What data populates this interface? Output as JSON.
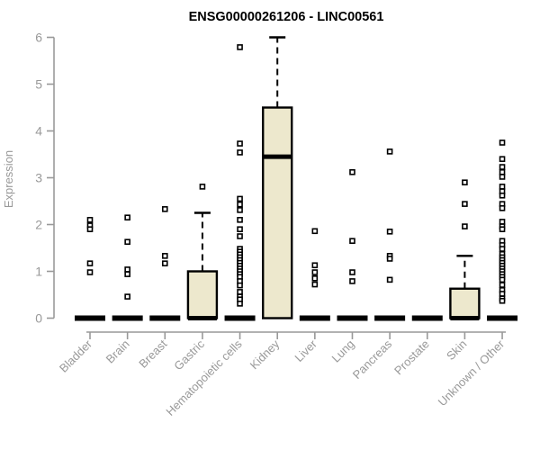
{
  "chart_data": {
    "type": "boxplot",
    "title": "ENSG00000261206 - LINC00561",
    "ylabel": "Expression",
    "xlabel": "",
    "ylim": [
      0,
      6
    ],
    "yticks": [
      0,
      1,
      2,
      3,
      4,
      5,
      6
    ],
    "legend": "none",
    "grid": false,
    "colors": {
      "box_fill": "#ede8cd",
      "box_stroke": "#000000",
      "axis": "#999999",
      "tick_label": "#999999",
      "title": "#000000"
    },
    "categories": [
      "Bladder",
      "Brain",
      "Breast",
      "Gastric",
      "Hematopoietic cells",
      "Kidney",
      "Liver",
      "Lung",
      "Pancreas",
      "Prostate",
      "Skin",
      "Unknown / Other"
    ],
    "boxes": [
      {
        "label": "Bladder",
        "q1": 0,
        "median": 0,
        "q3": 0,
        "whisker_low": 0,
        "whisker_high": 0,
        "outliers": [
          2.1,
          1.98,
          1.9,
          1.17,
          0.98
        ]
      },
      {
        "label": "Brain",
        "q1": 0,
        "median": 0,
        "q3": 0,
        "whisker_low": 0,
        "whisker_high": 0,
        "outliers": [
          2.15,
          1.63,
          1.04,
          0.94,
          0.46
        ]
      },
      {
        "label": "Breast",
        "q1": 0,
        "median": 0,
        "q3": 0,
        "whisker_low": 0,
        "whisker_high": 0,
        "outliers": [
          2.33,
          1.33,
          1.17
        ]
      },
      {
        "label": "Gastric",
        "q1": 0,
        "median": 0,
        "q3": 1.0,
        "whisker_low": 0,
        "whisker_high": 2.25,
        "outliers": [
          2.81
        ]
      },
      {
        "label": "Hematopoietic cells",
        "q1": 0,
        "median": 0,
        "q3": 0,
        "whisker_low": 0,
        "whisker_high": 0,
        "outliers": [
          5.79,
          3.73,
          3.54,
          2.55,
          2.43,
          2.31,
          2.1,
          1.9,
          1.75,
          1.48,
          1.42,
          1.36,
          1.3,
          1.24,
          1.18,
          1.12,
          1.06,
          1.0,
          0.94,
          0.88,
          0.79,
          0.7,
          0.56,
          0.46,
          0.4,
          0.31
        ]
      },
      {
        "label": "Kidney",
        "q1": 0,
        "median": 3.45,
        "q3": 4.5,
        "whisker_low": 0,
        "whisker_high": 6.0,
        "outliers": []
      },
      {
        "label": "Liver",
        "q1": 0,
        "median": 0,
        "q3": 0,
        "whisker_low": 0,
        "whisker_high": 0,
        "outliers": [
          1.86,
          1.13,
          0.98,
          0.85,
          0.72
        ]
      },
      {
        "label": "Lung",
        "q1": 0,
        "median": 0,
        "q3": 0,
        "whisker_low": 0,
        "whisker_high": 0,
        "outliers": [
          3.12,
          1.65,
          0.98,
          0.79
        ]
      },
      {
        "label": "Pancreas",
        "q1": 0,
        "median": 0,
        "q3": 0,
        "whisker_low": 0,
        "whisker_high": 0,
        "outliers": [
          3.56,
          1.85,
          1.33,
          1.27,
          0.82
        ]
      },
      {
        "label": "Prostate",
        "q1": 0,
        "median": 0,
        "q3": 0,
        "whisker_low": 0,
        "whisker_high": 0,
        "outliers": []
      },
      {
        "label": "Skin",
        "q1": 0,
        "median": 0,
        "q3": 0.63,
        "whisker_low": 0,
        "whisker_high": 1.33,
        "outliers": [
          2.9,
          2.44,
          1.96
        ]
      },
      {
        "label": "Unknown / Other",
        "q1": 0,
        "median": 0,
        "q3": 0,
        "whisker_low": 0,
        "whisker_high": 0,
        "outliers": [
          3.75,
          3.4,
          3.23,
          3.12,
          3.02,
          2.81,
          2.71,
          2.62,
          2.44,
          2.35,
          2.06,
          1.96,
          1.9,
          1.65,
          1.56,
          1.48,
          1.37,
          1.3,
          1.24,
          1.18,
          1.12,
          1.06,
          1.0,
          0.94,
          0.88,
          0.82,
          0.71,
          0.6,
          0.52,
          0.42,
          0.37
        ]
      }
    ]
  }
}
